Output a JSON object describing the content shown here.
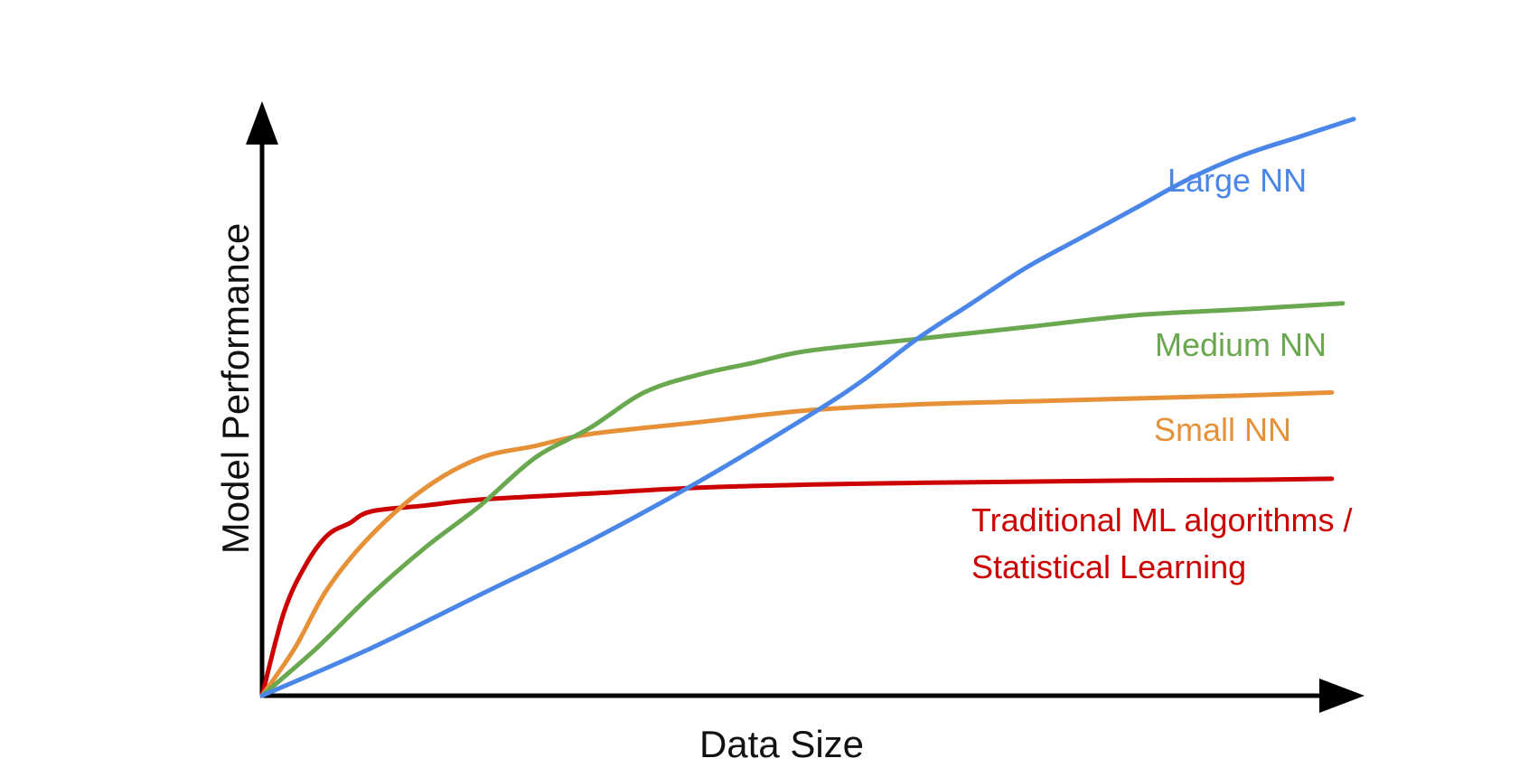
{
  "chart_data": {
    "type": "line",
    "title": "",
    "xlabel": "Data Size",
    "ylabel": "Model Performance",
    "xlim": [
      0,
      100
    ],
    "ylim": [
      0,
      100
    ],
    "grid": false,
    "legend": "inline labels at right end of curves",
    "series": [
      {
        "name": "Large NN",
        "label_lines": [
          "Large NN"
        ],
        "color": "#4a86e8",
        "points": [
          [
            0,
            0
          ],
          [
            10,
            8
          ],
          [
            20,
            17
          ],
          [
            30,
            26
          ],
          [
            40,
            36
          ],
          [
            50,
            47
          ],
          [
            55,
            53
          ],
          [
            60,
            60
          ],
          [
            65,
            66
          ],
          [
            70,
            72
          ],
          [
            75,
            77
          ],
          [
            80,
            82
          ],
          [
            85,
            87
          ],
          [
            90,
            91
          ],
          [
            95,
            94
          ],
          [
            100,
            97
          ]
        ]
      },
      {
        "name": "Medium NN",
        "label_lines": [
          "Medium NN"
        ],
        "color": "#6aa84f",
        "points": [
          [
            0,
            0
          ],
          [
            5,
            8
          ],
          [
            10,
            17
          ],
          [
            15,
            25
          ],
          [
            20,
            32
          ],
          [
            25,
            40
          ],
          [
            30,
            45
          ],
          [
            35,
            51
          ],
          [
            40,
            54
          ],
          [
            45,
            56
          ],
          [
            50,
            58
          ],
          [
            60,
            60
          ],
          [
            70,
            62
          ],
          [
            80,
            64
          ],
          [
            90,
            65
          ],
          [
            99,
            66
          ]
        ]
      },
      {
        "name": "Small NN",
        "label_lines": [
          "Small NN"
        ],
        "color": "#e69138",
        "points": [
          [
            0,
            0
          ],
          [
            3,
            8
          ],
          [
            6,
            18
          ],
          [
            10,
            27
          ],
          [
            15,
            35
          ],
          [
            20,
            40
          ],
          [
            25,
            42
          ],
          [
            30,
            44
          ],
          [
            40,
            46
          ],
          [
            50,
            48
          ],
          [
            60,
            49
          ],
          [
            70,
            49.5
          ],
          [
            80,
            50
          ],
          [
            90,
            50.5
          ],
          [
            98,
            51
          ]
        ]
      },
      {
        "name": "Traditional ML algorithms / Statistical Learning",
        "label_lines": [
          "Traditional ML algorithms /",
          "Statistical Learning"
        ],
        "color": "#cc0000",
        "points": [
          [
            0,
            0
          ],
          [
            2,
            14
          ],
          [
            4,
            22
          ],
          [
            6,
            27
          ],
          [
            8,
            29
          ],
          [
            10,
            31
          ],
          [
            15,
            32
          ],
          [
            20,
            33
          ],
          [
            30,
            34
          ],
          [
            40,
            35
          ],
          [
            50,
            35.5
          ],
          [
            60,
            35.8
          ],
          [
            70,
            36
          ],
          [
            80,
            36.2
          ],
          [
            90,
            36.3
          ],
          [
            98,
            36.5
          ]
        ]
      }
    ]
  }
}
